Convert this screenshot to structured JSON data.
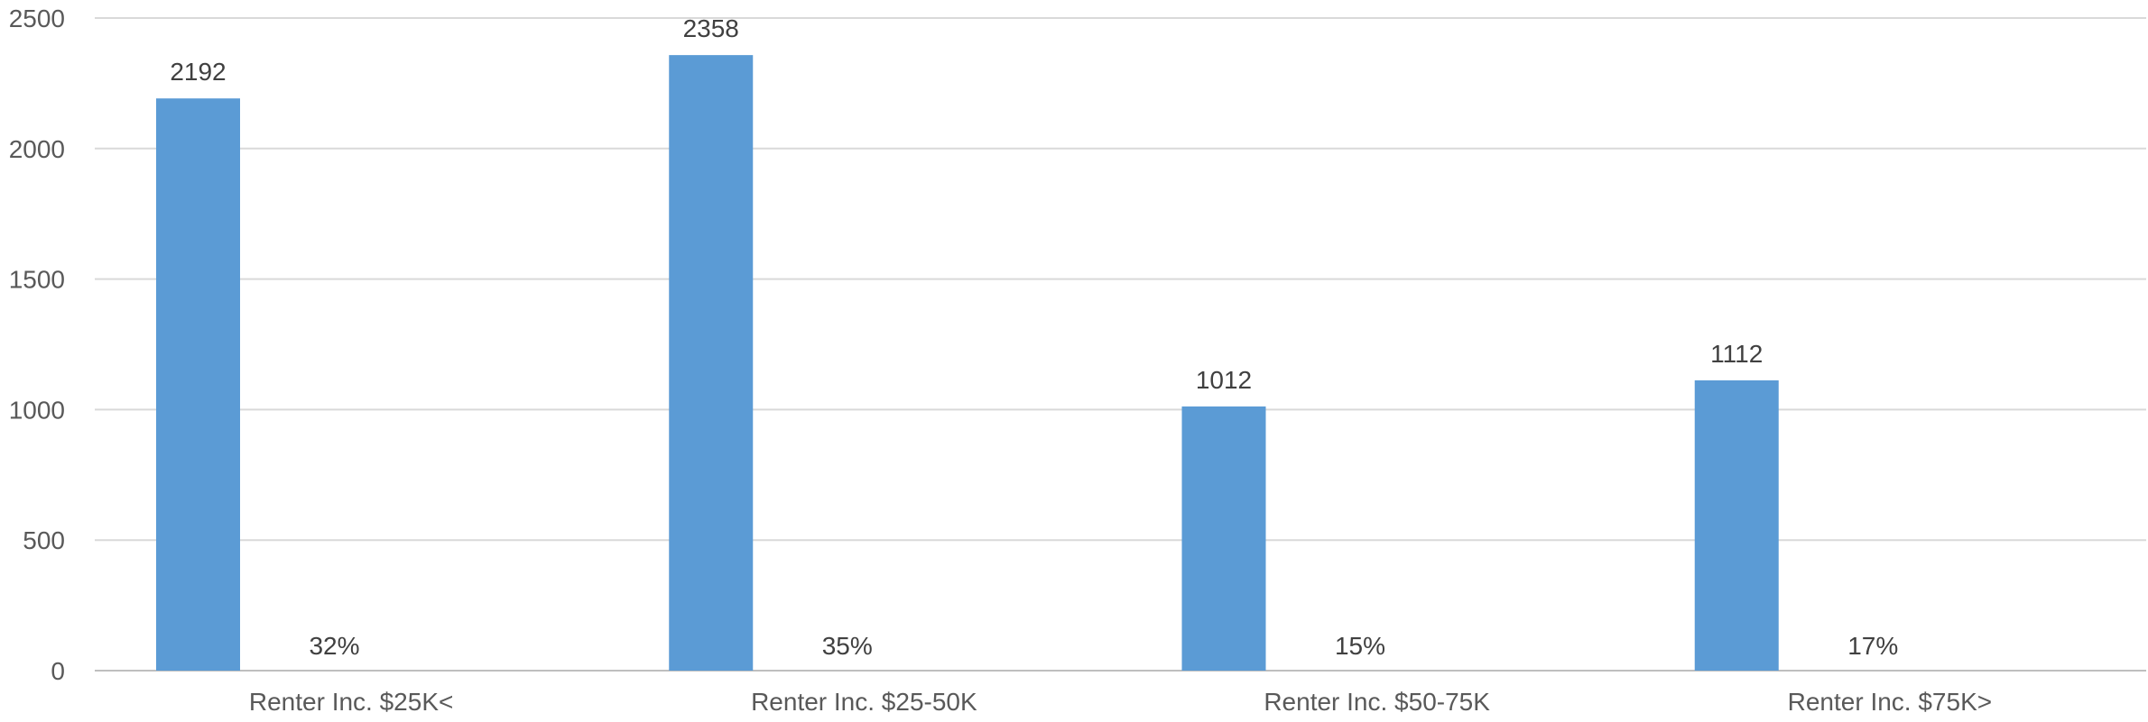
{
  "chart_data": {
    "type": "bar",
    "title": "",
    "xlabel": "",
    "ylabel": "",
    "ylim": [
      0,
      2500
    ],
    "yticks": [
      0,
      500,
      1000,
      1500,
      2000,
      2500
    ],
    "grid": true,
    "legend": "none",
    "categories": [
      "Renter Inc. $25K<",
      "Renter Inc. $25-50K",
      "Renter Inc. $50-75K",
      "Renter Inc. $75K>"
    ],
    "series": [
      {
        "values": [
          2192,
          2358,
          1012,
          1112
        ],
        "color": "#5b9bd5",
        "labels": [
          "2192",
          "2358",
          "1012",
          "1112"
        ]
      },
      {
        "values": [
          0.32,
          0.35,
          0.15,
          0.17
        ],
        "color": "#ed7d31",
        "labels": [
          "32%",
          "35%",
          "15%",
          "17%"
        ]
      }
    ]
  }
}
